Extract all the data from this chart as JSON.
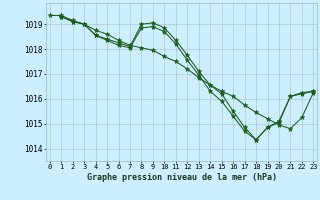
{
  "title": "Graphe pression niveau de la mer (hPa)",
  "background_color": "#cceeff",
  "grid_color": "#aacccc",
  "line_color": "#1a5c1a",
  "marker_color": "#1a5c1a",
  "x_ticks": [
    0,
    1,
    2,
    3,
    4,
    5,
    6,
    7,
    8,
    9,
    10,
    11,
    12,
    13,
    14,
    15,
    16,
    17,
    18,
    19,
    20,
    21,
    22,
    23
  ],
  "y_ticks": [
    1014,
    1015,
    1016,
    1017,
    1018,
    1019
  ],
  "ylim": [
    1013.5,
    1019.85
  ],
  "xlim": [
    -0.3,
    23.3
  ],
  "series": [
    {
      "x": [
        1,
        2,
        3,
        4,
        5,
        6,
        7,
        8,
        9,
        10,
        11,
        12,
        13,
        14,
        15,
        16,
        17,
        18,
        19,
        20,
        21,
        22,
        23
      ],
      "y": [
        1019.3,
        1019.1,
        1019.0,
        1018.55,
        1018.4,
        1018.25,
        1018.1,
        1019.0,
        1019.05,
        1018.85,
        1018.35,
        1017.75,
        1017.1,
        1016.55,
        1016.2,
        1015.5,
        1014.85,
        1014.35,
        1014.85,
        1015.1,
        1016.1,
        1016.2,
        1016.3
      ]
    },
    {
      "x": [
        1,
        2,
        3,
        4,
        5,
        6,
        7,
        8,
        9,
        10,
        11,
        12,
        13,
        14,
        15,
        16,
        17,
        18,
        19,
        20,
        21,
        22,
        23
      ],
      "y": [
        1019.3,
        1019.1,
        1019.0,
        1018.55,
        1018.35,
        1018.15,
        1018.05,
        1018.85,
        1018.9,
        1018.7,
        1018.2,
        1017.55,
        1016.95,
        1016.3,
        1015.9,
        1015.3,
        1014.7,
        1014.35,
        1014.85,
        1015.05,
        1016.1,
        1016.25,
        1016.3
      ]
    },
    {
      "x": [
        0,
        1,
        2,
        3,
        4,
        5,
        6,
        7,
        8,
        9,
        10,
        11,
        12,
        13,
        14,
        15,
        16,
        17,
        18,
        19,
        20,
        21,
        22,
        23
      ],
      "y": [
        1019.35,
        1019.35,
        1019.15,
        1019.0,
        1018.75,
        1018.6,
        1018.35,
        1018.15,
        1018.05,
        1017.95,
        1017.7,
        1017.5,
        1017.2,
        1016.85,
        1016.55,
        1016.3,
        1016.1,
        1015.75,
        1015.45,
        1015.2,
        1014.95,
        1014.8,
        1015.25,
        1016.25
      ]
    }
  ]
}
